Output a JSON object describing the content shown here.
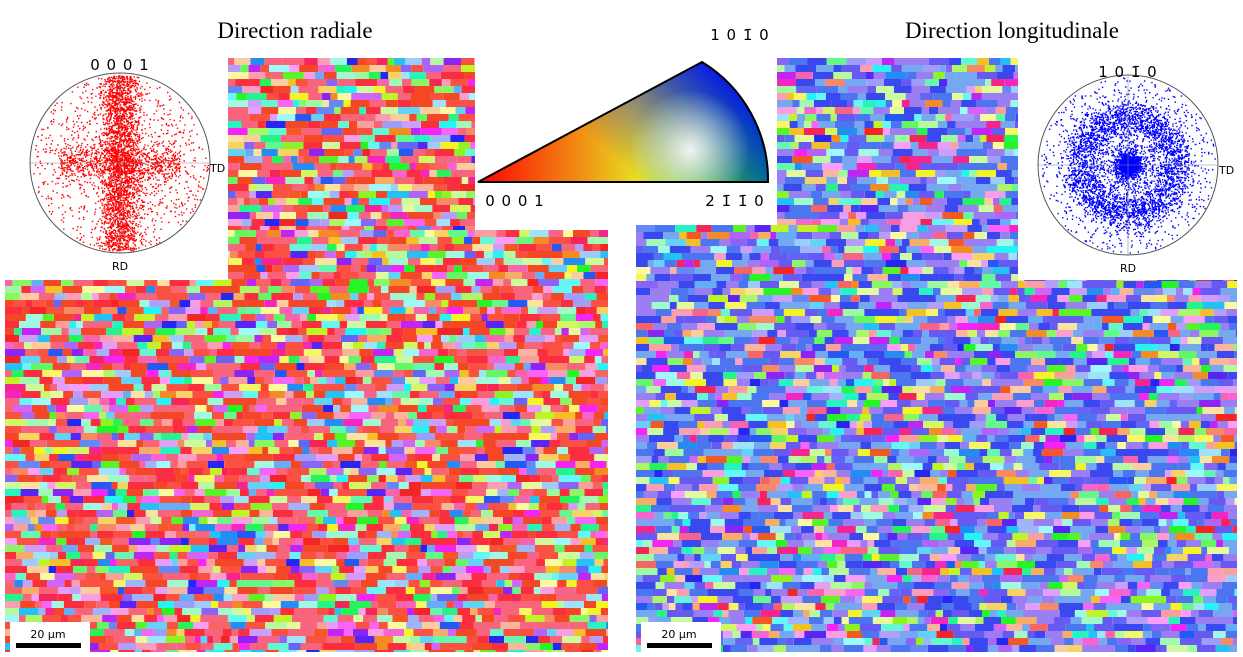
{
  "titles": {
    "left": "Direction radiale",
    "right": "Direction longitudinale"
  },
  "pole_figures": [
    {
      "pole": "0 0 0 1",
      "td": "TD",
      "rd": "RD"
    },
    {
      "pole": "1 0 1̄ 0",
      "td": "TD",
      "rd": "RD"
    }
  ],
  "ipf_key": {
    "top": "1 0 1̄ 0",
    "left": "0 0 0 1",
    "right": "2 1̄ 1̄ 0"
  },
  "scale_bars": [
    "20 µm",
    "20 µm"
  ]
}
